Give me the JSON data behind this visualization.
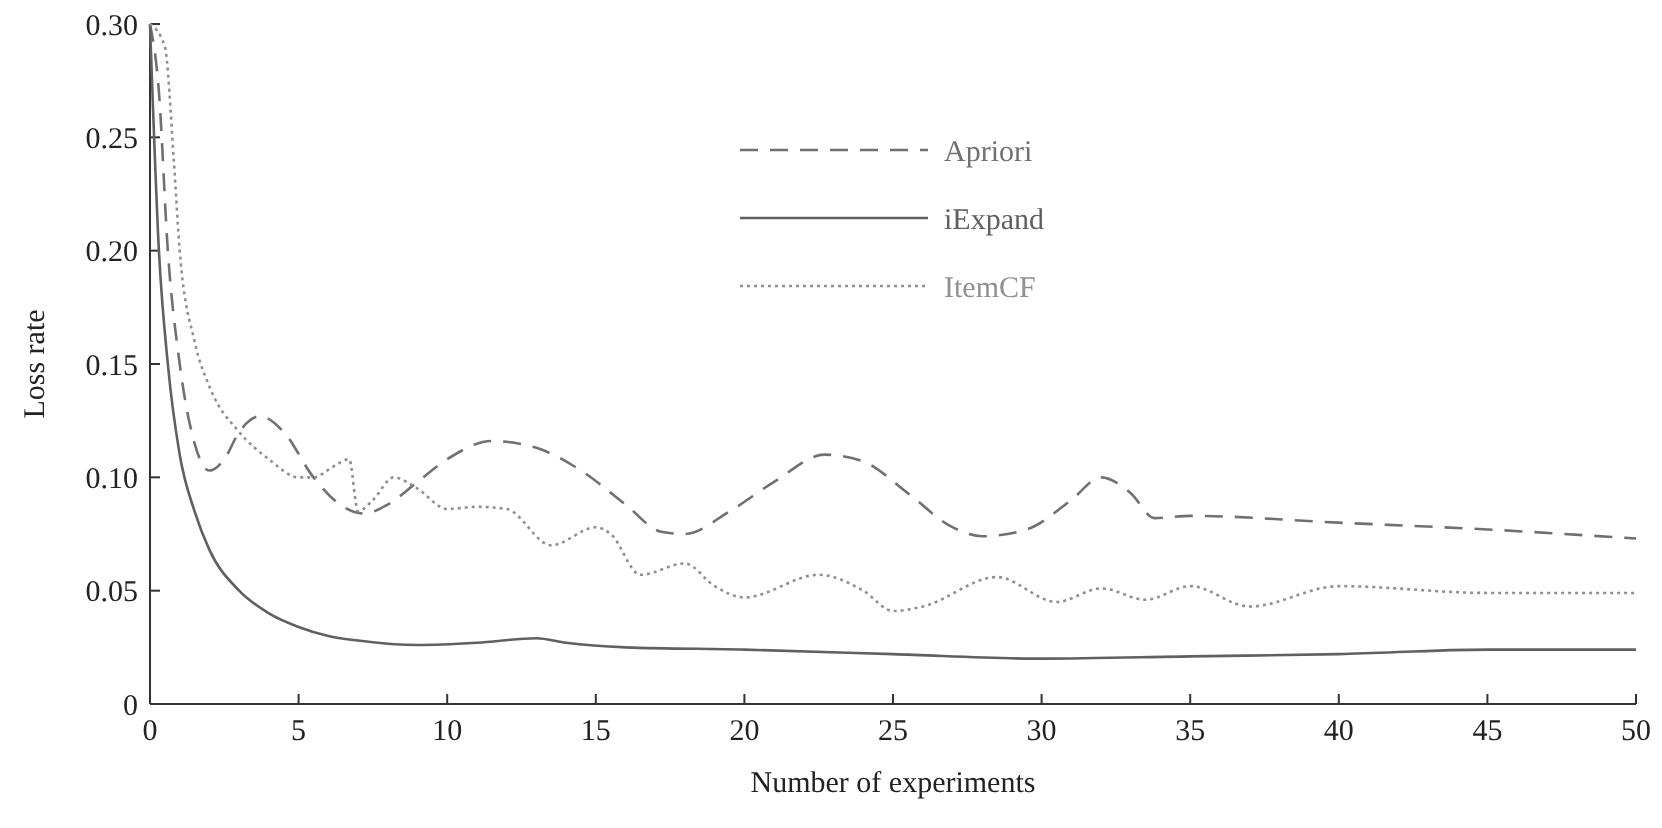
{
  "chart_data": {
    "type": "line",
    "xlabel": "Number of experiments",
    "ylabel": "Loss rate",
    "xlim": [
      0,
      50
    ],
    "ylim": [
      0,
      0.3
    ],
    "xticks": [
      0,
      5,
      10,
      15,
      20,
      25,
      30,
      35,
      40,
      45,
      50
    ],
    "yticks": [
      0,
      {
        "value": 0.05,
        "label": "0.05"
      },
      {
        "value": 0.1,
        "label": "0.10"
      },
      {
        "value": 0.15,
        "label": "0.15"
      },
      {
        "value": 0.2,
        "label": "0.20"
      },
      {
        "value": 0.25,
        "label": "0.25"
      },
      {
        "value": 0.3,
        "label": "0.30"
      }
    ],
    "grid": false,
    "legend": "top",
    "series": [
      {
        "name": "Apriori",
        "color": "#707070",
        "line_style": "dashed",
        "x": [
          0,
          0.3,
          0.6,
          1,
          1.5,
          2,
          2.5,
          3,
          3.7,
          4.5,
          5.5,
          6.5,
          7.2,
          8,
          9,
          10,
          11.5,
          13,
          14.5,
          16,
          17.2,
          18,
          19.5,
          21,
          22.7,
          24,
          25.5,
          27,
          28,
          29.5,
          31,
          32,
          33,
          33.8,
          35,
          40,
          45,
          50
        ],
        "values": [
          0.3,
          0.27,
          0.2,
          0.15,
          0.115,
          0.103,
          0.108,
          0.12,
          0.127,
          0.12,
          0.1,
          0.087,
          0.084,
          0.088,
          0.098,
          0.108,
          0.116,
          0.113,
          0.103,
          0.088,
          0.076,
          0.075,
          0.085,
          0.098,
          0.11,
          0.107,
          0.093,
          0.078,
          0.074,
          0.077,
          0.09,
          0.1,
          0.093,
          0.082,
          0.083,
          0.08,
          0.077,
          0.073
        ]
      },
      {
        "name": "iExpand",
        "color": "#606060",
        "line_style": "solid",
        "x": [
          0,
          0.3,
          0.6,
          1,
          1.5,
          2,
          3,
          4,
          5,
          6,
          7,
          9,
          11,
          13,
          14,
          16,
          20,
          25,
          30,
          35,
          40,
          45,
          50
        ],
        "values": [
          0.3,
          0.2,
          0.15,
          0.11,
          0.085,
          0.068,
          0.05,
          0.04,
          0.034,
          0.03,
          0.028,
          0.026,
          0.027,
          0.029,
          0.027,
          0.025,
          0.024,
          0.022,
          0.02,
          0.021,
          0.022,
          0.024,
          0.024
        ]
      },
      {
        "name": "ItemCF",
        "color": "#909090",
        "line_style": "dotted",
        "x": [
          0,
          0.5,
          0.8,
          1,
          1.5,
          2,
          3,
          4,
          5,
          5.5,
          6.2,
          6.7,
          7,
          7.5,
          8.2,
          9,
          10,
          11,
          12,
          13.5,
          15,
          15.5,
          16.5,
          18,
          19,
          20,
          22.5,
          24,
          25,
          26,
          28.5,
          30.5,
          32,
          33.5,
          35,
          37,
          40,
          45,
          50
        ],
        "values": [
          0.3,
          0.29,
          0.24,
          0.2,
          0.16,
          0.14,
          0.12,
          0.108,
          0.1,
          0.1,
          0.105,
          0.108,
          0.085,
          0.09,
          0.1,
          0.095,
          0.086,
          0.087,
          0.086,
          0.07,
          0.078,
          0.075,
          0.057,
          0.062,
          0.052,
          0.047,
          0.057,
          0.05,
          0.041,
          0.043,
          0.056,
          0.045,
          0.051,
          0.046,
          0.052,
          0.043,
          0.052,
          0.049,
          0.049
        ]
      }
    ]
  }
}
